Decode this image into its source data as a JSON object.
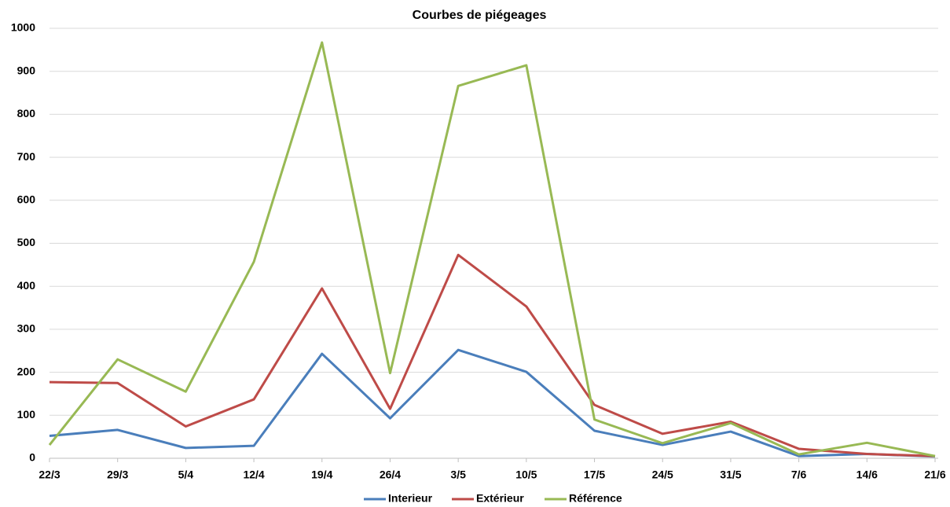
{
  "chart_data": {
    "type": "line",
    "title": "Courbes de piégeages",
    "categories": [
      "22/3",
      "29/3",
      "5/4",
      "12/4",
      "19/4",
      "26/4",
      "3/5",
      "10/5",
      "17/5",
      "24/5",
      "31/5",
      "7/6",
      "14/6",
      "21/6"
    ],
    "series": [
      {
        "name": "Interieur",
        "color": "#4a7ebb",
        "values": [
          52,
          66,
          24,
          29,
          243,
          93,
          252,
          201,
          64,
          31,
          62,
          5,
          10,
          4
        ]
      },
      {
        "name": "Extérieur",
        "color": "#be4b48",
        "values": [
          177,
          175,
          74,
          137,
          395,
          115,
          473,
          353,
          124,
          57,
          85,
          22,
          10,
          5
        ]
      },
      {
        "name": "Référence",
        "color": "#98b954",
        "values": [
          31,
          230,
          155,
          457,
          967,
          198,
          866,
          914,
          90,
          35,
          82,
          9,
          36,
          5
        ]
      }
    ],
    "ylim": [
      0,
      1000
    ],
    "yticks": [
      0,
      100,
      200,
      300,
      400,
      500,
      600,
      700,
      800,
      900,
      1000
    ],
    "grid": true,
    "legend": "bottom"
  }
}
